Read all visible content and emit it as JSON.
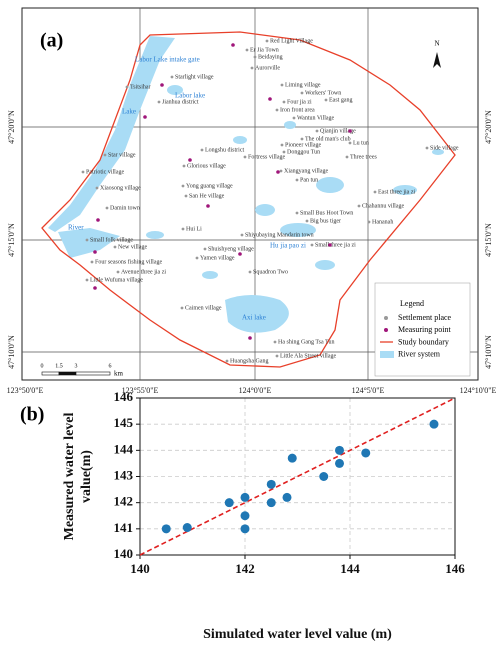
{
  "map": {
    "label": "(a)",
    "lon_labels": [
      "123°50'0\"E",
      "123°55'0\"E",
      "124°0'0\"E",
      "124°5'0\"E",
      "124°10'0\"E"
    ],
    "lat_labels": [
      "47°20'0\"N",
      "47°15'0\"N",
      "47°10'0\"N"
    ],
    "north": "N",
    "scale": [
      "0",
      "1.5",
      "3",
      "6",
      "km"
    ],
    "legend": {
      "title": "Legend",
      "items": [
        "Settlement place",
        "Measuring point",
        "Study boundary",
        "River system"
      ]
    },
    "water_labels": [
      "Labor Lake intake gate",
      "Labor lake",
      "Lake",
      "River",
      "Hu jia pao zi",
      "Axi lake"
    ],
    "places": [
      "Red Light Village",
      "Er Jia Town",
      "Beidaying",
      "Aurorville",
      "Starlight village",
      "Tsitsihar",
      "Jianhua district",
      "Liming village",
      "Workers' Town",
      "Four jia zi",
      "East gang",
      "Iron front area",
      "Wantun Village",
      "Star village",
      "Longshu district",
      "Glorious village",
      "Patriotic village",
      "Fortress village",
      "Qianjin village",
      "The old man's club",
      "Pioneer village",
      "Donggou Tun",
      "Lu tun",
      "Three trees",
      "Side village",
      "Xiangyang village",
      "Pan tun",
      "Xiaosong village",
      "Yong guang village",
      "San He village",
      "East three jia zi",
      "Chahannu village",
      "Small Bus Hoot Town",
      "Big bus tiger",
      "Hananah",
      "Damin town",
      "Hui Li",
      "Small folk village",
      "New village",
      "Shiyubaying Mandarin town",
      "Small three jia zi",
      "Four seasons fishing village",
      "Shuishyeng village",
      "Yamen village",
      "Avenue three jia zi",
      "Little Wufuma village",
      "Squadron Two",
      "Caimen village",
      "Ha shing Gang Tsa Tun",
      "Little Ala Street village",
      "Huangsha Gang"
    ]
  },
  "chart_data": {
    "type": "scatter",
    "label": "(b)",
    "x_label": "Simulated water level value (m)",
    "y_label": [
      "Measured water level",
      "value(m)"
    ],
    "x": [
      140.5,
      140.9,
      141.7,
      142.0,
      142.0,
      142.0,
      142.5,
      142.5,
      142.8,
      142.9,
      143.5,
      143.8,
      143.8,
      144.3,
      145.6
    ],
    "values": [
      141.0,
      141.05,
      142.0,
      141.0,
      141.5,
      142.2,
      142.0,
      142.7,
      142.2,
      143.7,
      143.0,
      143.5,
      144.0,
      143.9,
      145.0
    ],
    "color": "#1f77b4",
    "xlim": [
      140,
      146
    ],
    "ylim": [
      140,
      146
    ],
    "xticks": [
      140,
      142,
      144,
      146
    ],
    "yticks": [
      140,
      141,
      142,
      143,
      144,
      145,
      146
    ],
    "grid": true,
    "reference_line_color": "#e02020"
  }
}
